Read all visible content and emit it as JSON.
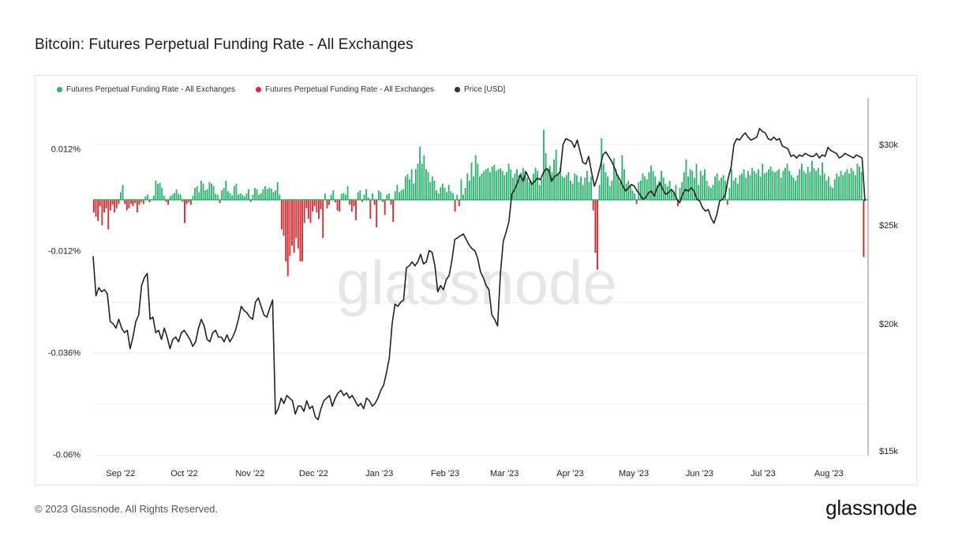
{
  "title": "Bitcoin: Futures Perpetual Funding Rate - All Exchanges",
  "legend": [
    {
      "label": "Futures Perpetual Funding Rate - All Exchanges",
      "color": "#2fb36e"
    },
    {
      "label": "Futures Perpetual Funding Rate - All Exchanges",
      "color": "#e0282e"
    },
    {
      "label": "Price [USD]",
      "color": "#333333"
    }
  ],
  "watermark": "glassnode",
  "footer": {
    "copyright": "© 2023 Glassnode. All Rights Reserved.",
    "logo": "glassnode"
  },
  "chart_data": {
    "type": "bar+line",
    "title": "Bitcoin: Futures Perpetual Funding Rate - All Exchanges",
    "x_ticks": [
      "Sep '22",
      "Oct '22",
      "Nov '22",
      "Dec '22",
      "Jan '23",
      "Feb '23",
      "Mar '23",
      "Apr '23",
      "May '23",
      "Jun '23",
      "Jul '23",
      "Aug '23"
    ],
    "x_tick_dates": [
      "2022-09-01",
      "2022-10-01",
      "2022-11-01",
      "2022-12-01",
      "2023-01-01",
      "2023-02-01",
      "2023-03-01",
      "2023-04-01",
      "2023-05-01",
      "2023-06-01",
      "2023-07-01",
      "2023-08-01"
    ],
    "x_range": [
      "2022-08-19",
      "2023-08-18"
    ],
    "left_axis": {
      "ticks": [
        0.012,
        -0.012,
        -0.036,
        -0.06
      ],
      "tick_labels": [
        "0.012%",
        "-0.012%",
        "-0.036%",
        "-0.06%"
      ]
    },
    "right_axis": {
      "ticks": [
        30000,
        25000,
        20000,
        15000
      ],
      "tick_labels": [
        "$30k",
        "$25k",
        "$20k",
        "$15k"
      ],
      "scale": "log"
    },
    "funding_rate_pct": [
      -0.003,
      -0.004,
      -0.005,
      -0.0015,
      -0.006,
      -0.003,
      -0.002,
      -0.007,
      -0.0025,
      -0.0012,
      -0.003,
      -0.002,
      -0.001,
      0.0018,
      0.0035,
      -0.001,
      -0.0025,
      -0.002,
      -0.001,
      -0.0015,
      -0.0008,
      -0.003,
      -0.0012,
      -0.0005,
      -0.001,
      0.0008,
      0.0012,
      -0.0006,
      0.0002,
      0.001,
      0.0045,
      0.0038,
      0.004,
      0.0028,
      0.001,
      -0.0005,
      -0.0012,
      0.0008,
      0.0012,
      0.0016,
      0.0024,
      0.0014,
      0.0012,
      -0.0005,
      -0.0055,
      -0.001,
      -0.0006,
      -0.0012,
      0.001,
      0.0028,
      0.0032,
      0.0018,
      0.0045,
      0.0038,
      0.0022,
      0.0025,
      0.0042,
      0.0038,
      0.0032,
      0.0014,
      0.0012,
      -0.0008,
      0.0022,
      0.0028,
      0.0045,
      0.002,
      0.0016,
      0.001,
      0.0032,
      0.0038,
      0.0012,
      0.0015,
      0.0012,
      0.0008,
      0.0015,
      0.0025,
      -0.0005,
      0.0012,
      0.0028,
      0.0025,
      0.0012,
      0.0016,
      0.0025,
      0.0032,
      0.0025,
      0.0028,
      0.0026,
      0.0018,
      0.0022,
      0.0042,
      0.0012,
      -0.007,
      -0.0085,
      -0.0145,
      -0.018,
      -0.0132,
      -0.0108,
      -0.0125,
      -0.009,
      -0.0115,
      -0.0145,
      -0.0145,
      -0.0055,
      -0.002,
      -0.0045,
      -0.0055,
      -0.0028,
      -0.0015,
      -0.003,
      -0.0045,
      -0.0022,
      -0.009,
      0.0015,
      -0.002,
      -0.0012,
      0.0012,
      0.0022,
      -0.0006,
      -0.0025,
      -0.0028,
      0.0014,
      0.0016,
      0.0012,
      0.0032,
      -0.0012,
      -0.0028,
      -0.0015,
      -0.0048,
      0.0018,
      0.0022,
      -0.0005,
      0.0012,
      0.0025,
      0.0005,
      -0.0045,
      0.0015,
      -0.0012,
      -0.0065,
      0.0022,
      0.0018,
      -0.0005,
      -0.0036,
      0.0012,
      0.0015,
      -0.0012,
      -0.0052,
      0.002,
      0.0035,
      0.0018,
      0.0022,
      0.0025,
      0.0055,
      0.006,
      0.0048,
      0.0072,
      0.0038,
      0.0072,
      0.0085,
      0.0125,
      0.0085,
      0.0105,
      0.0072,
      0.0065,
      0.0042,
      0.0055,
      0.0045,
      0.0022,
      0.0015,
      0.003,
      0.0038,
      0.0028,
      0.0018,
      0.0035,
      0.002,
      0.0015,
      -0.0028,
      0.0012,
      -0.0015,
      0.0048,
      0.0012,
      0.0028,
      0.0062,
      0.0045,
      0.0088,
      0.0055,
      0.0105,
      0.0085,
      0.0055,
      0.0062,
      0.0068,
      0.0072,
      0.0075,
      0.0065,
      0.0078,
      0.0082,
      0.0068,
      0.0072,
      0.0074,
      0.0068,
      0.0058,
      0.0065,
      0.0085,
      0.0072,
      0.0052,
      0.0062,
      0.0072,
      0.0058,
      0.0064,
      0.0075,
      0.0068,
      0.0052,
      0.0042,
      0.0045,
      0.0062,
      0.0075,
      0.0068,
      0.0035,
      0.0048,
      0.0165,
      0.011,
      0.0075,
      0.008,
      0.0065,
      0.0095,
      0.0118,
      0.0062,
      0.0075,
      0.0055,
      0.0052,
      0.0058,
      0.0065,
      0.0045,
      0.0038,
      0.0062,
      0.0058,
      0.0042,
      0.0055,
      0.0035,
      0.0052,
      0.0068,
      0.0042,
      0.0055,
      -0.0025,
      -0.0125,
      -0.0165,
      0.0035,
      0.0145,
      0.0085,
      0.0065,
      0.0055,
      0.0032,
      0.0045,
      0.0098,
      0.0072,
      0.0058,
      0.0042,
      0.0105,
      0.0072,
      0.0038,
      0.0045,
      0.0035,
      0.0022,
      0.0015,
      -0.001,
      0.0042,
      0.0045,
      0.0062,
      0.0055,
      0.0048,
      0.0065,
      0.008,
      0.0068,
      0.0055,
      0.0035,
      0.0045,
      0.0068,
      0.0052,
      0.0038,
      0.0032,
      0.0045,
      0.0025,
      0.0018,
      0.0035,
      -0.0015,
      0.0028,
      0.0042,
      0.0065,
      0.0095,
      0.0055,
      0.0072,
      0.0068,
      0.0052,
      0.0085,
      0.0035,
      0.0068,
      0.0058,
      0.0072,
      0.0045,
      0.0032,
      0.0028,
      0.0035,
      0.0055,
      0.0062,
      0.0045,
      0.0052,
      0.0058,
      0.0045,
      -0.0012,
      0.0028,
      0.0072,
      0.0045,
      0.0052,
      0.0038,
      0.0058,
      0.0062,
      0.0072,
      0.0052,
      0.0068,
      0.0058,
      0.0075,
      0.0068,
      0.0062,
      0.0072,
      0.0055,
      0.0085,
      0.0062,
      0.0065,
      0.0072,
      0.0078,
      0.0068,
      0.0065,
      0.0068,
      0.0072,
      0.0052,
      0.0068,
      0.0075,
      0.0085,
      0.0068,
      0.0058,
      0.0052,
      0.0045,
      0.0058,
      0.0072,
      0.0085,
      0.0068,
      0.0062,
      0.0078,
      0.0065,
      0.0092,
      0.0075,
      0.0068,
      0.0075,
      0.0058,
      0.0088,
      0.0062,
      0.0045,
      0.0055,
      0.0032,
      0.0028,
      0.0048,
      0.0062,
      0.0055,
      0.0068,
      0.0058,
      0.0065,
      0.0072,
      0.0062,
      0.0075,
      0.0068,
      0.0058,
      0.0085,
      0.0078,
      0.0065,
      -0.0135
    ],
    "price_usd": [
      23300,
      21300,
      21700,
      21500,
      21600,
      21400,
      20100,
      20000,
      19800,
      20200,
      19800,
      19600,
      19700,
      18900,
      19400,
      20100,
      20400,
      21800,
      22200,
      22400,
      20200,
      20300,
      19600,
      19700,
      19300,
      19800,
      19400,
      18900,
      19300,
      19400,
      19200,
      19600,
      19700,
      19500,
      19300,
      19000,
      19200,
      19800,
      20200,
      19900,
      19300,
      19200,
      19600,
      19700,
      19400,
      19400,
      19200,
      19500,
      19200,
      19400,
      19700,
      20200,
      20800,
      20600,
      20500,
      20300,
      20200,
      21000,
      21200,
      20800,
      20400,
      20300,
      20700,
      21100,
      16300,
      16500,
      16900,
      16700,
      17000,
      16900,
      16800,
      16300,
      16600,
      16600,
      16400,
      16800,
      16500,
      16600,
      16200,
      16100,
      16500,
      16800,
      16900,
      17000,
      16600,
      16900,
      17100,
      17200,
      17000,
      17100,
      16900,
      17000,
      16800,
      16600,
      16700,
      16500,
      16900,
      16800,
      16600,
      16700,
      16900,
      17200,
      17400,
      17900,
      18500,
      20000,
      20900,
      20800,
      21000,
      21100,
      22700,
      22800,
      23000,
      22800,
      23000,
      23400,
      22900,
      23000,
      23600,
      23500,
      22800,
      21500,
      21800,
      21600,
      22100,
      22300,
      23100,
      24200,
      24300,
      24400,
      24500,
      24200,
      23900,
      23700,
      23600,
      23200,
      22500,
      22200,
      21800,
      21600,
      20400,
      20200,
      19900,
      22400,
      24100,
      24600,
      25200,
      26800,
      27100,
      27500,
      28000,
      27600,
      28200,
      27800,
      27400,
      27600,
      27800,
      27700,
      28100,
      28400,
      28300,
      27600,
      27900,
      28000,
      28200,
      30000,
      30400,
      30300,
      30200,
      29800,
      30300,
      29500,
      28800,
      28700,
      29200,
      28200,
      27300,
      27800,
      28500,
      29300,
      29500,
      29200,
      28900,
      28500,
      28000,
      27700,
      27300,
      27000,
      27200,
      27400,
      27300,
      27000,
      26800,
      26500,
      26600,
      26900,
      27000,
      26700,
      27200,
      27500,
      27100,
      26800,
      26900,
      27100,
      26900,
      26500,
      26300,
      26800,
      27100,
      27000,
      27200,
      27000,
      26500,
      26400,
      26000,
      25800,
      25900,
      25400,
      25100,
      25600,
      26400,
      26500,
      26800,
      27800,
      28500,
      30000,
      30400,
      30300,
      30600,
      30800,
      30500,
      30300,
      30400,
      30500,
      31100,
      30900,
      30800,
      30400,
      30300,
      30500,
      30300,
      30400,
      29900,
      29800,
      29700,
      29200,
      29300,
      29100,
      29300,
      29200,
      29400,
      29300,
      29200,
      29200,
      29400,
      29100,
      29300,
      29200,
      29800,
      29600,
      29500,
      29400,
      29100,
      29200,
      29400,
      29300,
      29200,
      29100,
      29300,
      29200,
      29100,
      26400
    ]
  }
}
